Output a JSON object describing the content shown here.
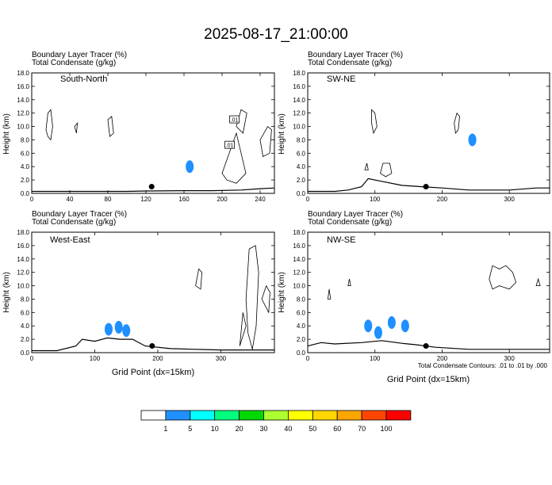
{
  "page": {
    "title": "2025-08-17_21:00:00",
    "footnote": "Total Condensate Contours: .01 to .01 by .000"
  },
  "chart_data": [
    {
      "type": "heatmap",
      "panel_label": "South-North",
      "header_lines": [
        "Boundary Layer Tracer   (%)",
        "Total Condensate   (g/kg)"
      ],
      "xlabel": "",
      "ylabel": "Height (km)",
      "xlim": [
        0,
        255
      ],
      "ylim": [
        0,
        18
      ],
      "x_ticks": [
        0,
        40,
        80,
        120,
        160,
        200,
        240
      ],
      "y_ticks": [
        "0.0",
        "2.0",
        "4.0",
        "6.0",
        "8.0",
        "10.0",
        "12.0",
        "14.0",
        "16.0",
        "18.0"
      ],
      "contour_labels": [
        ".01",
        ".01"
      ],
      "marker": {
        "x": 126,
        "y": 1.0
      },
      "terrain": [
        [
          0,
          0.3
        ],
        [
          20,
          0.3
        ],
        [
          60,
          0.3
        ],
        [
          100,
          0.3
        ],
        [
          120,
          0.35
        ],
        [
          160,
          0.4
        ],
        [
          190,
          0.4
        ],
        [
          220,
          0.5
        ],
        [
          240,
          0.7
        ],
        [
          255,
          0.8
        ]
      ],
      "tracer_blobs": [
        {
          "x": 166,
          "y": 4.0
        }
      ],
      "condensate_contours": [
        [
          [
            15,
            9.5
          ],
          [
            17,
            12.0
          ],
          [
            20,
            12.5
          ],
          [
            22,
            10.0
          ],
          [
            20,
            8.0
          ],
          [
            17,
            8.5
          ]
        ],
        [
          [
            45,
            10.0
          ],
          [
            48,
            10.5
          ],
          [
            47,
            9.0
          ]
        ],
        [
          [
            80,
            11.0
          ],
          [
            84,
            11.5
          ],
          [
            86,
            9.0
          ],
          [
            82,
            8.5
          ]
        ],
        [
          [
            200,
            3.0
          ],
          [
            210,
            7.0
          ],
          [
            215,
            9.0
          ],
          [
            220,
            6.0
          ],
          [
            225,
            3.0
          ],
          [
            215,
            1.5
          ],
          [
            205,
            2.0
          ]
        ],
        [
          [
            215,
            10.0
          ],
          [
            220,
            12.5
          ],
          [
            226,
            12.0
          ],
          [
            222,
            9.0
          ]
        ],
        [
          [
            240,
            8.0
          ],
          [
            248,
            10.0
          ],
          [
            252,
            9.5
          ],
          [
            250,
            6.0
          ],
          [
            243,
            5.5
          ]
        ]
      ]
    },
    {
      "type": "heatmap",
      "panel_label": "SW-NE",
      "header_lines": [
        "Boundary Layer Tracer   (%)",
        "Total Condensate   (g/kg)"
      ],
      "xlabel": "",
      "ylabel": "Height (km)",
      "xlim": [
        0,
        360
      ],
      "ylim": [
        0,
        18
      ],
      "x_ticks": [
        0,
        100,
        200,
        300
      ],
      "y_ticks": [
        "0.0",
        "2.0",
        "4.0",
        "6.0",
        "8.0",
        "10.0",
        "12.0",
        "14.0",
        "16.0",
        "18.0"
      ],
      "marker": {
        "x": 176,
        "y": 1.0
      },
      "terrain": [
        [
          0,
          0.3
        ],
        [
          40,
          0.3
        ],
        [
          60,
          0.5
        ],
        [
          80,
          1.0
        ],
        [
          90,
          2.2
        ],
        [
          110,
          1.8
        ],
        [
          140,
          1.2
        ],
        [
          170,
          1.0
        ],
        [
          200,
          0.8
        ],
        [
          240,
          0.5
        ],
        [
          300,
          0.5
        ],
        [
          340,
          0.8
        ],
        [
          360,
          0.8
        ]
      ],
      "tracer_blobs": [
        {
          "x": 245,
          "y": 8.0
        }
      ],
      "condensate_contours": [
        [
          [
            95,
            12.5
          ],
          [
            100,
            12.0
          ],
          [
            103,
            10.0
          ],
          [
            98,
            9.0
          ],
          [
            95,
            10.5
          ]
        ],
        [
          [
            108,
            3.0
          ],
          [
            112,
            4.5
          ],
          [
            122,
            4.5
          ],
          [
            125,
            3.0
          ],
          [
            116,
            2.5
          ]
        ],
        [
          [
            218,
            10.5
          ],
          [
            222,
            12.0
          ],
          [
            226,
            11.5
          ],
          [
            224,
            9.5
          ],
          [
            220,
            9.0
          ]
        ],
        [
          [
            85,
            3.5
          ],
          [
            88,
            4.5
          ],
          [
            90,
            3.5
          ]
        ]
      ]
    },
    {
      "type": "heatmap",
      "panel_label": "West-East",
      "header_lines": [
        "Boundary Layer Tracer   (%)",
        "Total Condensate   (g/kg)"
      ],
      "xlabel": "Grid Point (dx=15km)",
      "ylabel": "Height (km)",
      "xlim": [
        0,
        385
      ],
      "ylim": [
        0,
        18
      ],
      "x_ticks": [
        0,
        100,
        200,
        300
      ],
      "y_ticks": [
        "0.0",
        "2.0",
        "4.0",
        "6.0",
        "8.0",
        "10.0",
        "12.0",
        "14.0",
        "16.0",
        "18.0"
      ],
      "marker": {
        "x": 191,
        "y": 1.0
      },
      "terrain": [
        [
          0,
          0.3
        ],
        [
          40,
          0.3
        ],
        [
          70,
          1.0
        ],
        [
          80,
          2.0
        ],
        [
          100,
          1.7
        ],
        [
          120,
          2.2
        ],
        [
          140,
          2.0
        ],
        [
          160,
          2.0
        ],
        [
          180,
          1.0
        ],
        [
          220,
          0.6
        ],
        [
          260,
          0.5
        ],
        [
          300,
          0.4
        ],
        [
          340,
          0.4
        ],
        [
          385,
          0.4
        ]
      ],
      "tracer_blobs": [
        {
          "x": 122,
          "y": 3.5
        },
        {
          "x": 138,
          "y": 3.8
        },
        {
          "x": 150,
          "y": 3.3
        }
      ],
      "condensate_contours": [
        [
          [
            260,
            10.0
          ],
          [
            265,
            12.5
          ],
          [
            270,
            12.0
          ],
          [
            268,
            9.5
          ]
        ],
        [
          [
            340,
            8.0
          ],
          [
            345,
            15.5
          ],
          [
            355,
            16.0
          ],
          [
            360,
            12.0
          ],
          [
            356,
            4.0
          ],
          [
            350,
            0.5
          ],
          [
            343,
            3.0
          ]
        ],
        [
          [
            330,
            1.0
          ],
          [
            335,
            6.0
          ],
          [
            340,
            4.0
          ]
        ],
        [
          [
            365,
            8.0
          ],
          [
            372,
            10.0
          ],
          [
            378,
            9.0
          ],
          [
            376,
            6.0
          ]
        ]
      ]
    },
    {
      "type": "heatmap",
      "panel_label": "NW-SE",
      "header_lines": [
        "Boundary Layer Tracer   (%)",
        "Total Condensate   (g/kg)"
      ],
      "xlabel": "Grid Point (dx=15km)",
      "ylabel": "Height (km)",
      "xlim": [
        0,
        360
      ],
      "ylim": [
        0,
        18
      ],
      "x_ticks": [
        0,
        100,
        200,
        300
      ],
      "y_ticks": [
        "0.0",
        "2.0",
        "4.0",
        "6.0",
        "8.0",
        "10.0",
        "12.0",
        "14.0",
        "16.0",
        "18.0"
      ],
      "marker": {
        "x": 176,
        "y": 1.0
      },
      "terrain": [
        [
          0,
          1.0
        ],
        [
          20,
          1.5
        ],
        [
          40,
          1.3
        ],
        [
          80,
          1.5
        ],
        [
          110,
          1.8
        ],
        [
          140,
          1.4
        ],
        [
          160,
          1.2
        ],
        [
          190,
          0.8
        ],
        [
          240,
          0.5
        ],
        [
          300,
          0.5
        ],
        [
          360,
          0.5
        ]
      ],
      "tracer_blobs": [
        {
          "x": 90,
          "y": 4.0
        },
        {
          "x": 105,
          "y": 3.0
        },
        {
          "x": 125,
          "y": 4.5
        },
        {
          "x": 145,
          "y": 4.0
        }
      ],
      "condensate_contours": [
        [
          [
            30,
            8.0
          ],
          [
            32,
            9.5
          ],
          [
            34,
            8.0
          ]
        ],
        [
          [
            60,
            10.0
          ],
          [
            62,
            11.0
          ],
          [
            64,
            10.0
          ]
        ],
        [
          [
            270,
            11.0
          ],
          [
            275,
            13.0
          ],
          [
            285,
            12.5
          ],
          [
            295,
            13.0
          ],
          [
            305,
            12.0
          ],
          [
            310,
            10.5
          ],
          [
            300,
            9.5
          ],
          [
            285,
            10.0
          ],
          [
            275,
            9.5
          ]
        ],
        [
          [
            340,
            10.0
          ],
          [
            343,
            11.0
          ],
          [
            346,
            10.0
          ]
        ]
      ]
    }
  ],
  "colorbar": {
    "labels": [
      "1",
      "5",
      "10",
      "20",
      "30",
      "40",
      "50",
      "60",
      "70",
      "100"
    ],
    "colors": [
      "#ffffff",
      "#1e90ff",
      "#00ffff",
      "#00ff7f",
      "#00d800",
      "#adff2f",
      "#ffff00",
      "#ffd700",
      "#ffa500",
      "#ff4500",
      "#ff0000"
    ]
  }
}
